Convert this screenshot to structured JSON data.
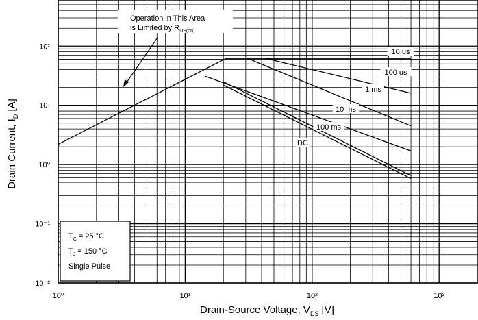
{
  "chart_data": {
    "type": "line",
    "xlabel": {
      "text": "Drain-Source Voltage, V",
      "sub": "DS",
      "rest": " [V]"
    },
    "ylabel": {
      "text": "Drain Current, I",
      "sub": "D",
      "rest": " [A]"
    },
    "log_x": true,
    "log_y": true,
    "grid": true,
    "minor_grid": true,
    "xlim": [
      1,
      2000
    ],
    "ylim": [
      0.01,
      600
    ],
    "xticks": [
      {
        "value": 1,
        "label": "10⁰"
      },
      {
        "value": 10,
        "label": "10¹"
      },
      {
        "value": 100,
        "label": "10²"
      },
      {
        "value": 1000,
        "label": "10³"
      }
    ],
    "yticks": [
      {
        "value": 0.01,
        "label": "10⁻²"
      },
      {
        "value": 0.1,
        "label": "10⁻¹"
      },
      {
        "value": 1,
        "label": "10⁰"
      },
      {
        "value": 10,
        "label": "10¹"
      },
      {
        "value": 100,
        "label": "10²"
      }
    ],
    "limit_line": {
      "x": [
        1,
        21
      ],
      "values": [
        2.2,
        62
      ],
      "color": "#000000"
    },
    "series": [
      {
        "name": "10 us",
        "color": "#000000",
        "x": [
          21,
          600
        ],
        "values": [
          62,
          62
        ]
      },
      {
        "name": "100 us",
        "color": "#000000",
        "x": [
          43,
          600
        ],
        "values": [
          62,
          16
        ]
      },
      {
        "name": "1 ms",
        "color": "#000000",
        "x": [
          31,
          600
        ],
        "values": [
          62,
          4.5
        ]
      },
      {
        "name": "10 ms",
        "color": "#000000",
        "x": [
          14.4,
          600
        ],
        "values": [
          31,
          1.7
        ]
      },
      {
        "name": "100 ms",
        "color": "#000000",
        "x": [
          20,
          600
        ],
        "values": [
          25,
          0.65
        ]
      },
      {
        "name": "DC",
        "color": "#000000",
        "x": [
          20,
          600
        ],
        "values": [
          22,
          0.58
        ]
      }
    ],
    "annotation": {
      "line1": "Operation in This Area",
      "line2": "is Limited by R",
      "sub": "DS(on)"
    },
    "conditions": [
      {
        "text": "T",
        "sub": "C",
        "rest": " = 25 °C"
      },
      {
        "text": "T",
        "sub": "J",
        "rest": " = 150 °C"
      },
      {
        "text": "Single Pulse",
        "sub": "",
        "rest": ""
      }
    ]
  }
}
